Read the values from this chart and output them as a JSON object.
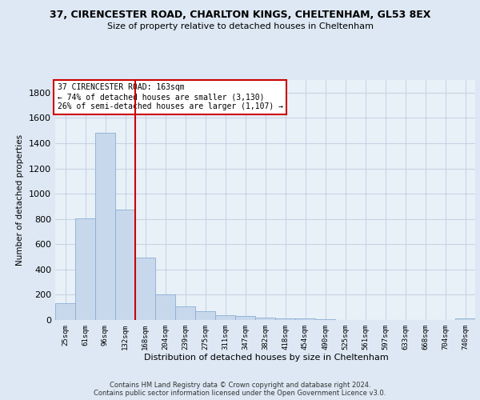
{
  "title_line1": "37, CIRENCESTER ROAD, CHARLTON KINGS, CHELTENHAM, GL53 8EX",
  "title_line2": "Size of property relative to detached houses in Cheltenham",
  "xlabel": "Distribution of detached houses by size in Cheltenham",
  "ylabel": "Number of detached properties",
  "footer_line1": "Contains HM Land Registry data © Crown copyright and database right 2024.",
  "footer_line2": "Contains public sector information licensed under the Open Government Licence v3.0.",
  "categories": [
    "25sqm",
    "61sqm",
    "96sqm",
    "132sqm",
    "168sqm",
    "204sqm",
    "239sqm",
    "275sqm",
    "311sqm",
    "347sqm",
    "382sqm",
    "418sqm",
    "454sqm",
    "490sqm",
    "525sqm",
    "561sqm",
    "597sqm",
    "633sqm",
    "668sqm",
    "704sqm",
    "740sqm"
  ],
  "values": [
    130,
    805,
    1480,
    875,
    495,
    205,
    110,
    68,
    40,
    30,
    20,
    15,
    10,
    5,
    3,
    2,
    1,
    1,
    0,
    0,
    15
  ],
  "bar_color": "#c8d8ec",
  "bar_edge_color": "#8aafd0",
  "vline_color": "#cc0000",
  "vline_pos": 3.5,
  "annotation_text": "37 CIRENCESTER ROAD: 163sqm\n← 74% of detached houses are smaller (3,130)\n26% of semi-detached houses are larger (1,107) →",
  "annotation_box_color": "#ffffff",
  "annotation_box_edge": "#cc0000",
  "ylim": [
    0,
    1900
  ],
  "yticks": [
    0,
    200,
    400,
    600,
    800,
    1000,
    1200,
    1400,
    1600,
    1800
  ],
  "bg_color": "#dde8f4",
  "plot_bg_color": "#e8f0f8",
  "grid_color": "#c8d4e4"
}
